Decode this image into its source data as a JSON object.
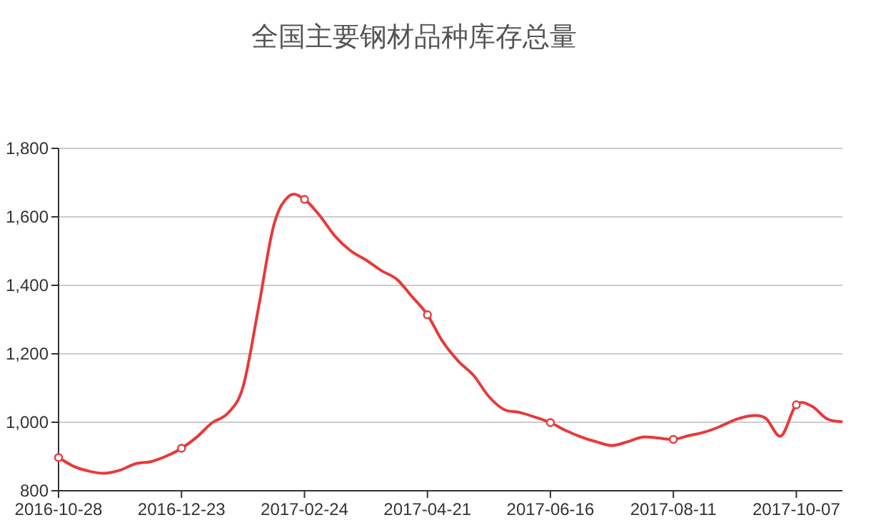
{
  "chart_data": {
    "type": "line",
    "title": "全国主要钢材品种库存总量",
    "categories": [
      "2016-10-28",
      null,
      null,
      null,
      null,
      null,
      null,
      null,
      "2016-12-23",
      null,
      null,
      null,
      null,
      null,
      null,
      null,
      "2017-02-24",
      null,
      null,
      null,
      null,
      null,
      null,
      null,
      "2017-04-21",
      null,
      null,
      null,
      null,
      null,
      null,
      null,
      "2017-06-16",
      null,
      null,
      null,
      null,
      null,
      null,
      null,
      "2017-08-11",
      null,
      null,
      null,
      null,
      null,
      null,
      null,
      "2017-10-07",
      null,
      null,
      null
    ],
    "series": [
      {
        "type": "scatter",
        "marker": "circle",
        "color": "#e8393a",
        "values": [
          897,
          null,
          null,
          null,
          null,
          null,
          null,
          null,
          924,
          null,
          null,
          null,
          null,
          null,
          null,
          null,
          1651,
          null,
          null,
          null,
          null,
          null,
          null,
          null,
          1314,
          null,
          null,
          null,
          null,
          null,
          null,
          null,
          999,
          null,
          null,
          null,
          null,
          null,
          null,
          null,
          950,
          null,
          null,
          null,
          null,
          null,
          null,
          null,
          1051,
          null,
          null,
          null
        ]
      },
      {
        "color": "#e8393a",
        "values": [
          897,
          871,
          857,
          851,
          860,
          879,
          885,
          901,
          924,
          957,
          999,
          1026,
          1103,
          1332,
          1575,
          1661,
          1651,
          1603,
          1543,
          1501,
          1474,
          1443,
          1418,
          1367,
          1314,
          1235,
          1179,
          1137,
          1075,
          1037,
          1029,
          1015,
          999,
          976,
          957,
          943,
          932,
          943,
          957,
          954,
          950,
          961,
          971,
          987,
          1007,
          1019,
          1012,
          960,
          1051,
          1047,
          1010,
          1001
        ]
      }
    ],
    "ylim": [
      800,
      1800
    ],
    "yticks": [
      {
        "value": 800,
        "label": "800"
      },
      {
        "value": 1000,
        "label": "1,000"
      },
      {
        "value": 1200,
        "label": "1,200"
      },
      {
        "value": 1400,
        "label": "1,400"
      },
      {
        "value": 1600,
        "label": "1,600"
      },
      {
        "value": 1800,
        "label": "1,800"
      }
    ],
    "grid": "y",
    "marker": "none",
    "line_style": "solid"
  }
}
